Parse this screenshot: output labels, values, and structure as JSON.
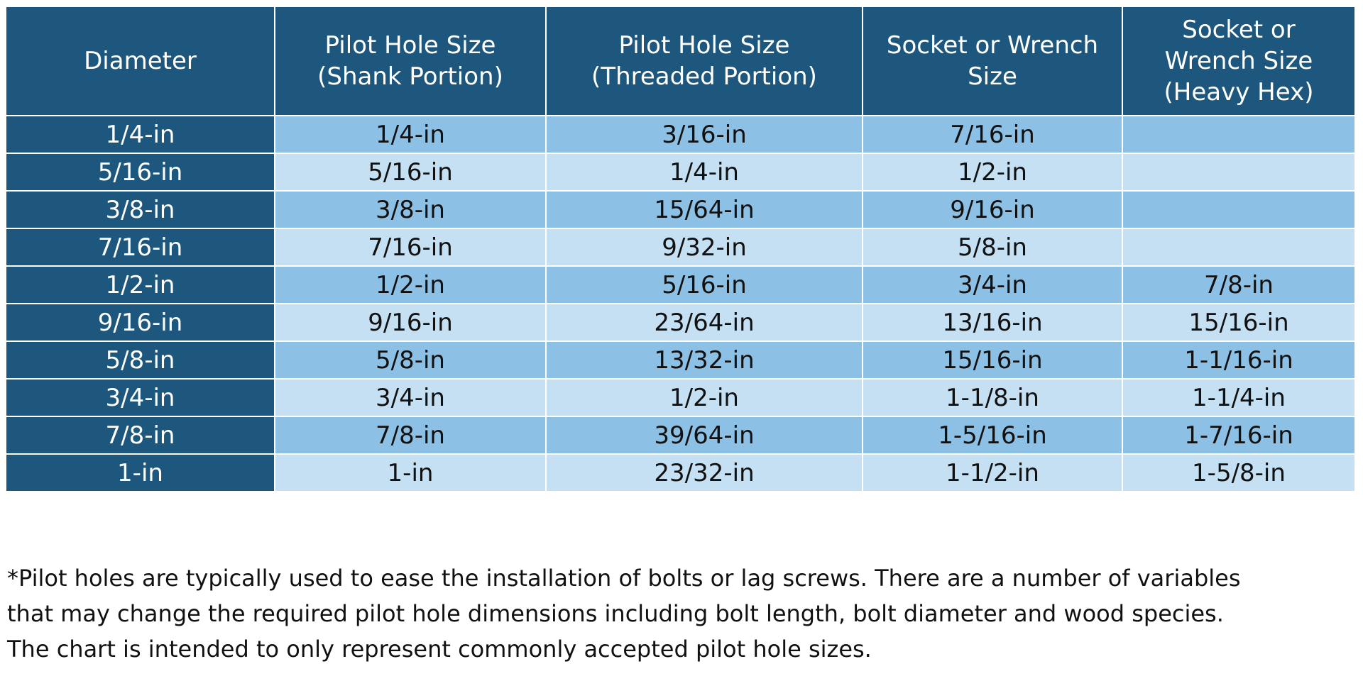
{
  "headers": [
    "Diameter",
    "Pilot Hole Size\n(Shank Portion)",
    "Pilot Hole Size\n(Threaded Portion)",
    "Socket or Wrench\nSize",
    "Socket or\nWrench Size\n(Heavy Hex)"
  ],
  "header_lines": [
    [
      "Diameter"
    ],
    [
      "Pilot Hole Size",
      "(Shank Portion)"
    ],
    [
      "Pilot Hole Size",
      "(Threaded Portion)"
    ],
    [
      "Socket or Wrench",
      "Size"
    ],
    [
      "Socket or",
      "Wrench Size",
      "(Heavy Hex)"
    ]
  ],
  "rows": [
    [
      "1/4-in",
      "1/4-in",
      "3/16-in",
      "7/16-in",
      ""
    ],
    [
      "5/16-in",
      "5/16-in",
      "1/4-in",
      "1/2-in",
      ""
    ],
    [
      "3/8-in",
      "3/8-in",
      "15/64-in",
      "9/16-in",
      ""
    ],
    [
      "7/16-in",
      "7/16-in",
      "9/32-in",
      "5/8-in",
      ""
    ],
    [
      "1/2-in",
      "1/2-in",
      "5/16-in",
      "3/4-in",
      "7/8-in"
    ],
    [
      "9/16-in",
      "9/16-in",
      "23/64-in",
      "13/16-in",
      "15/16-in"
    ],
    [
      "5/8-in",
      "5/8-in",
      "13/32-in",
      "15/16-in",
      "1-1/16-in"
    ],
    [
      "3/4-in",
      "3/4-in",
      "1/2-in",
      "1-1/8-in",
      "1-1/4-in"
    ],
    [
      "7/8-in",
      "7/8-in",
      "39/64-in",
      "1-5/16-in",
      "1-7/16-in"
    ],
    [
      "1-in",
      "1-in",
      "23/32-in",
      "1-1/2-in",
      "1-5/8-in"
    ]
  ],
  "footnote": [
    "*Pilot holes are typically used to ease the installation of bolts or lag screws. There are a number of variables",
    "that may change the required pilot hole dimensions including bolt length, bolt diameter and wood species.",
    "The chart is intended to only represent commonly accepted pilot hole sizes."
  ],
  "colors": {
    "header": "#1d577d",
    "row_dark": "#8cc0e4",
    "row_light": "#c5e0f2"
  }
}
